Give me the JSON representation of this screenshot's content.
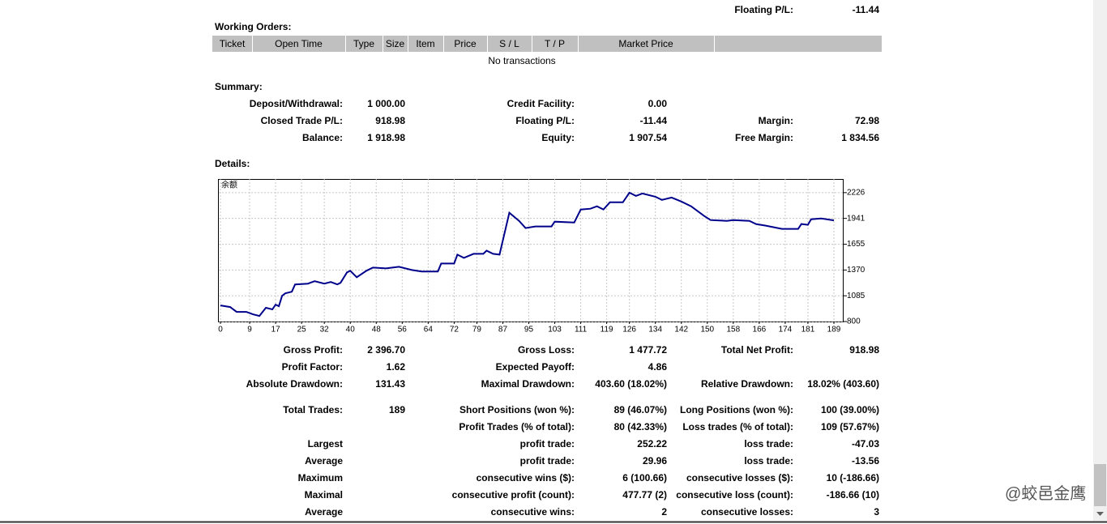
{
  "header": {
    "label": "Floating P/L:",
    "value": "-11.44"
  },
  "working_orders": {
    "title": "Working Orders:",
    "columns": [
      "Ticket",
      "Open Time",
      "Type",
      "Size",
      "Item",
      "Price",
      "S / L",
      "T / P",
      "Market Price"
    ],
    "empty_note": "No transactions"
  },
  "summary": {
    "title": "Summary:",
    "rows": [
      [
        "Deposit/Withdrawal:",
        "1 000.00",
        "Credit Facility:",
        "0.00",
        null,
        null
      ],
      [
        "Closed Trade P/L:",
        "918.98",
        "Floating P/L:",
        "-11.44",
        "Margin:",
        "72.98"
      ],
      [
        "Balance:",
        "1 918.98",
        "Equity:",
        "1 907.54",
        "Free Margin:",
        "1 834.56"
      ]
    ]
  },
  "details": {
    "title": "Details:",
    "rows": [
      [
        "Gross Profit:",
        "2 396.70",
        "Gross Loss:",
        "1 477.72",
        "Total Net Profit:",
        "918.98"
      ],
      [
        "Profit Factor:",
        "1.62",
        "Expected Payoff:",
        "4.86",
        null,
        null
      ],
      [
        "Absolute Drawdown:",
        "131.43",
        "Maximal Drawdown:",
        "403.60 (18.02%)",
        "Relative Drawdown:",
        "18.02% (403.60)"
      ],
      [
        "Total Trades:",
        "189",
        "Short Positions (won %):",
        "89 (46.07%)",
        "Long Positions (won %):",
        "100 (39.00%)"
      ],
      [
        null,
        null,
        "Profit Trades (% of total):",
        "80 (42.33%)",
        "Loss trades (% of total):",
        "109 (57.67%)"
      ],
      [
        "Largest",
        null,
        "profit trade:",
        "252.22",
        "loss trade:",
        "-47.03"
      ],
      [
        "Average",
        null,
        "profit trade:",
        "29.96",
        "loss trade:",
        "-13.56"
      ],
      [
        "Maximum",
        null,
        "consecutive wins ($):",
        "6 (100.66)",
        "consecutive losses ($):",
        "10 (-186.66)"
      ],
      [
        "Maximal",
        null,
        "consecutive profit (count):",
        "477.77 (2)",
        "consecutive loss (count):",
        "-186.66 (10)"
      ],
      [
        "Average",
        null,
        "consecutive wins:",
        "2",
        "consecutive losses:",
        "3"
      ]
    ]
  },
  "chart_data": {
    "type": "line",
    "x": [
      0,
      3,
      5,
      8,
      10,
      12,
      14,
      16,
      17,
      18,
      19,
      20,
      22,
      23,
      27,
      29,
      32,
      34,
      36,
      37,
      39,
      40,
      42,
      45,
      47,
      51,
      55,
      59,
      62,
      67,
      68,
      72,
      73,
      75,
      78,
      81,
      82,
      84,
      86,
      89,
      92,
      94,
      97,
      102,
      103,
      109,
      111,
      114,
      116,
      118,
      120,
      124,
      126,
      128,
      130,
      134,
      136,
      139,
      142,
      145,
      149,
      151,
      156,
      158,
      163,
      165,
      168,
      173,
      178,
      179,
      181,
      182,
      185,
      189
    ],
    "series": [
      {
        "name": "余额",
        "color": "#00008b",
        "values": [
          978,
          960,
          907,
          907,
          880,
          862,
          952,
          934,
          987,
          969,
          1085,
          1112,
          1130,
          1210,
          1219,
          1246,
          1219,
          1237,
          1210,
          1228,
          1344,
          1362,
          1290,
          1362,
          1397,
          1388,
          1406,
          1370,
          1353,
          1353,
          1442,
          1442,
          1540,
          1504,
          1549,
          1549,
          1584,
          1549,
          1540,
          2003,
          1914,
          1834,
          1852,
          1852,
          1905,
          1896,
          2039,
          2048,
          2075,
          2039,
          2119,
          2119,
          2226,
          2190,
          2217,
          2181,
          2146,
          2172,
          2128,
          2075,
          1968,
          1923,
          1914,
          1923,
          1914,
          1879,
          1861,
          1825,
          1825,
          1879,
          1870,
          1932,
          1941,
          1919
        ]
      }
    ],
    "xlim": [
      0,
      192
    ],
    "ylim": [
      800,
      2377
    ],
    "xticks": [
      0,
      9,
      17,
      25,
      32,
      40,
      48,
      56,
      64,
      72,
      79,
      87,
      95,
      103,
      111,
      119,
      126,
      134,
      142,
      150,
      158,
      166,
      174,
      181,
      189
    ],
    "yticks": [
      800,
      1085,
      1370,
      1655,
      1941,
      2226
    ],
    "grid": true
  },
  "watermark": "@蛟邑金鹰"
}
